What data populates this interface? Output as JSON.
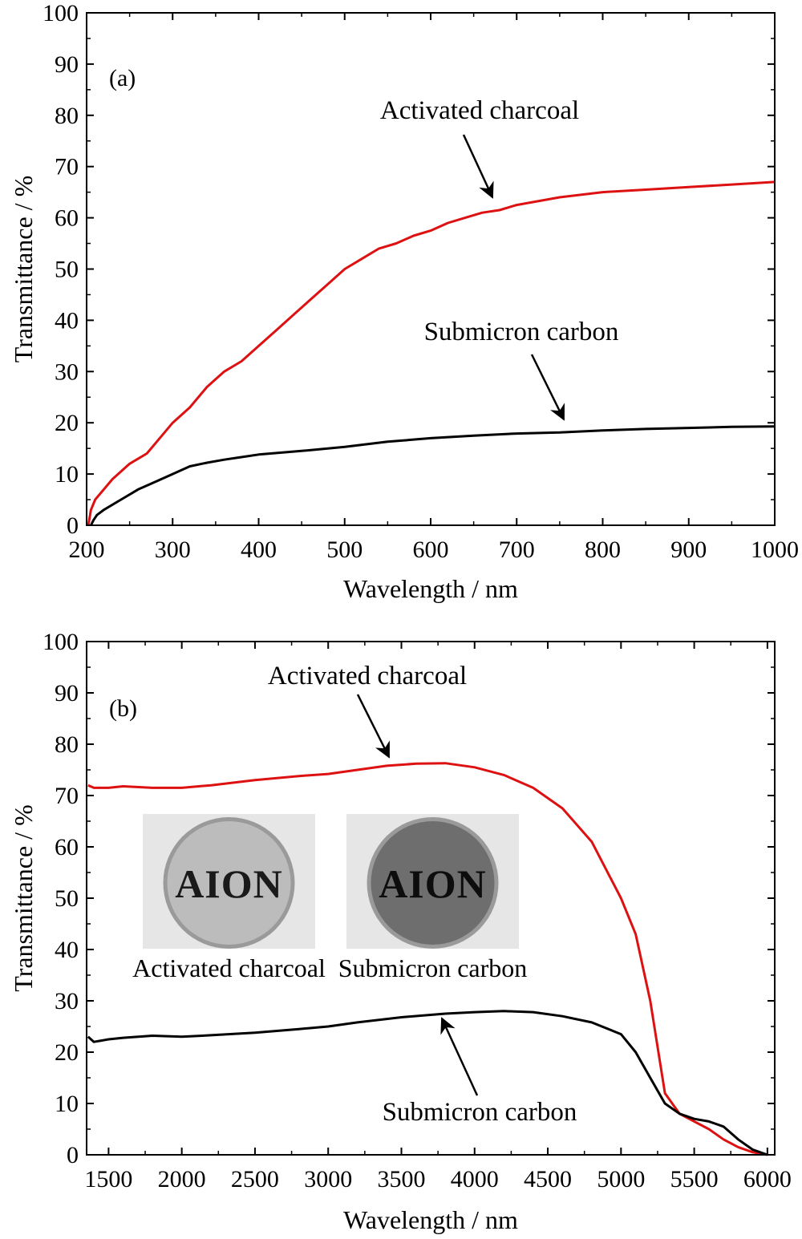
{
  "chart_data": [
    {
      "type": "line",
      "panel_label": "(a)",
      "xlabel": "Wavelength / nm",
      "ylabel": "Transmittance / %",
      "xlim": [
        200,
        1000
      ],
      "ylim": [
        0,
        100
      ],
      "xticks": [
        200,
        300,
        400,
        500,
        600,
        700,
        800,
        900,
        1000
      ],
      "yticks": [
        0,
        10,
        20,
        30,
        40,
        50,
        60,
        70,
        80,
        90,
        100
      ],
      "grid": false,
      "series": [
        {
          "name": "Activated charcoal",
          "color": "#dd1111",
          "x": [
            202,
            205,
            210,
            220,
            230,
            250,
            270,
            280,
            300,
            320,
            340,
            360,
            380,
            400,
            420,
            440,
            460,
            480,
            500,
            520,
            540,
            560,
            580,
            600,
            620,
            640,
            660,
            680,
            700,
            750,
            800,
            850,
            900,
            950,
            1000
          ],
          "y": [
            0,
            3,
            5,
            7,
            9,
            12,
            14,
            16,
            20,
            23,
            27,
            30,
            32,
            35,
            38,
            41,
            44,
            47,
            50,
            52,
            54,
            55,
            56.5,
            57.5,
            59,
            60,
            61,
            61.5,
            62.5,
            64,
            65,
            65.5,
            66,
            66.5,
            67
          ]
        },
        {
          "name": "Submicron carbon",
          "color": "#000000",
          "x": [
            205,
            208,
            212,
            220,
            240,
            260,
            280,
            300,
            320,
            340,
            360,
            380,
            400,
            450,
            500,
            550,
            600,
            650,
            700,
            750,
            800,
            850,
            900,
            950,
            1000
          ],
          "y": [
            0,
            1,
            2,
            3,
            5,
            7,
            8.5,
            10,
            11.5,
            12.2,
            12.8,
            13.3,
            13.8,
            14.5,
            15.3,
            16.3,
            17,
            17.5,
            17.9,
            18.1,
            18.5,
            18.8,
            19,
            19.2,
            19.3
          ]
        }
      ],
      "annotations": [
        {
          "text": "Activated charcoal",
          "x": 650,
          "y": 64
        },
        {
          "text": "Submicron carbon",
          "x": 760,
          "y": 20
        }
      ]
    },
    {
      "type": "line",
      "panel_label": "(b)",
      "xlabel": "Wavelength / nm",
      "ylabel": "Transmittance / %",
      "xlim": [
        1350,
        6050
      ],
      "ylim": [
        0,
        100
      ],
      "xticks": [
        1500,
        2000,
        2500,
        3000,
        3500,
        4000,
        4500,
        5000,
        5500,
        6000
      ],
      "yticks": [
        0,
        10,
        20,
        30,
        40,
        50,
        60,
        70,
        80,
        90,
        100
      ],
      "grid": false,
      "series": [
        {
          "name": "Activated charcoal",
          "color": "#dd1111",
          "x": [
            1360,
            1400,
            1500,
            1600,
            1800,
            2000,
            2200,
            2500,
            2800,
            3000,
            3200,
            3400,
            3600,
            3800,
            4000,
            4200,
            4400,
            4600,
            4800,
            5000,
            5100,
            5200,
            5300,
            5400,
            5500,
            5600,
            5700,
            5800,
            5900,
            6000
          ],
          "y": [
            72,
            71.5,
            71.5,
            71.8,
            71.5,
            71.5,
            72,
            73,
            73.8,
            74.2,
            75,
            75.8,
            76.2,
            76.3,
            75.5,
            74,
            71.5,
            67.5,
            61,
            50,
            43,
            30,
            12,
            8,
            6.5,
            5,
            3,
            1.5,
            0.5,
            0
          ]
        },
        {
          "name": "Submicron carbon",
          "color": "#000000",
          "x": [
            1360,
            1400,
            1500,
            1600,
            1800,
            2000,
            2200,
            2500,
            2800,
            3000,
            3200,
            3500,
            3800,
            4000,
            4200,
            4400,
            4600,
            4800,
            5000,
            5100,
            5200,
            5300,
            5400,
            5500,
            5600,
            5700,
            5800,
            5900,
            6000
          ],
          "y": [
            23,
            22,
            22.5,
            22.8,
            23.2,
            23,
            23.3,
            23.8,
            24.5,
            25,
            25.8,
            26.8,
            27.5,
            27.8,
            28,
            27.8,
            27,
            25.8,
            23.5,
            20,
            15,
            10,
            8,
            7,
            6.5,
            5.5,
            3,
            1,
            0
          ]
        }
      ],
      "annotations": [
        {
          "text": "Activated charcoal",
          "x": 3400,
          "y": 77
        },
        {
          "text": "Submicron carbon",
          "x": 3800,
          "y": 27
        }
      ],
      "inset_photos": [
        {
          "caption": "Activated charcoal",
          "photo_text": "AION",
          "disc_color": "#bcbcbc"
        },
        {
          "caption": "Submicron carbon",
          "photo_text": "AION",
          "disc_color": "#6e6e6e"
        }
      ]
    }
  ]
}
